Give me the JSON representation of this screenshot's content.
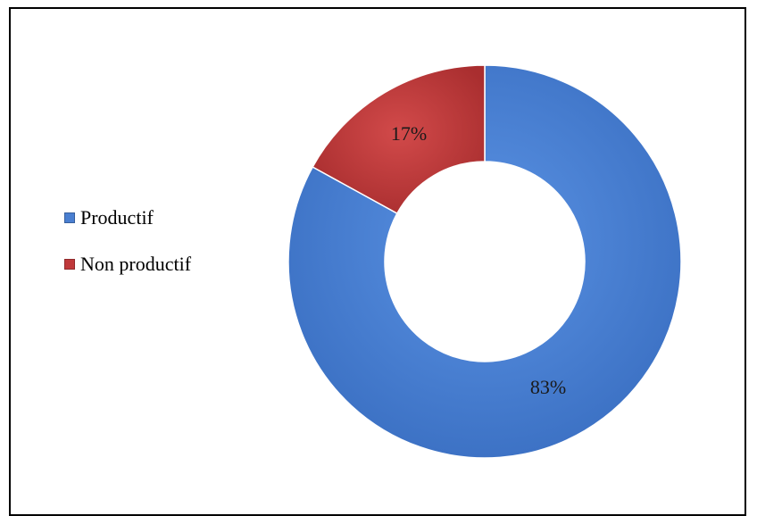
{
  "chart_data": {
    "type": "pie",
    "variant": "doughnut",
    "title": "",
    "categories": [
      "Productif",
      "Non productif"
    ],
    "values": [
      83,
      17
    ],
    "labels": [
      "83%",
      "17%"
    ],
    "colors": [
      "#4a7fd1",
      "#c0393b"
    ],
    "legend": {
      "placement": "left",
      "items": [
        {
          "label": "Productif",
          "color": "#4a7fd1"
        },
        {
          "label": "Non productif",
          "color": "#c0393b"
        }
      ]
    }
  }
}
